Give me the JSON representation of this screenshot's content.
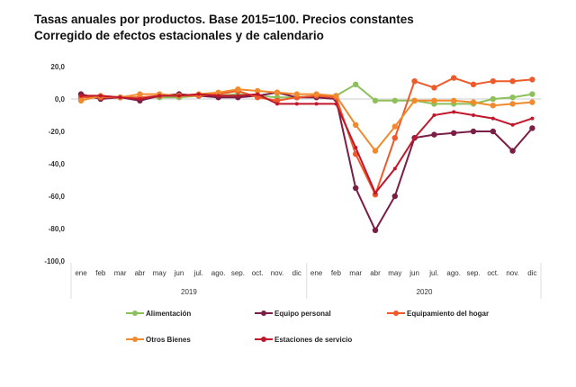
{
  "chart_data": {
    "type": "line",
    "title": "Tasas anuales por productos. Base 2015=100. Precios constantes",
    "subtitle": "Corregido de efectos estacionales y de calendario",
    "ylim": [
      -100,
      20
    ],
    "yticks": [
      "20,0",
      "0,0",
      "-20,0",
      "-40,0",
      "-60,0",
      "-80,0",
      "-100,0"
    ],
    "ytick_values": [
      20,
      0,
      -20,
      -40,
      -60,
      -80,
      -100
    ],
    "categories": [
      "ene",
      "feb",
      "mar",
      "abr",
      "may",
      "jun",
      "jul.",
      "ago.",
      "sep.",
      "oct.",
      "nov.",
      "dic",
      "ene",
      "feb",
      "mar",
      "abr",
      "may",
      "jun",
      "jul.",
      "ago.",
      "sep.",
      "oct.",
      "nov.",
      "dic"
    ],
    "years": [
      "2019",
      "2020"
    ],
    "legend_position": "bottom",
    "series": [
      {
        "name": "Alimentación",
        "color": "#8dc05a",
        "values": [
          2,
          1,
          1,
          1,
          1,
          1,
          2,
          2,
          3,
          2,
          1,
          1,
          2,
          2,
          9,
          -1,
          -1,
          -1,
          -3,
          -3,
          -3,
          0,
          1,
          3
        ]
      },
      {
        "name": "Equipo personal",
        "color": "#7b1e45",
        "values": [
          3,
          0,
          1,
          -1,
          2,
          3,
          2,
          1,
          1,
          2,
          4,
          1,
          1,
          0,
          -55,
          -81,
          -60,
          -24,
          -22,
          -21,
          -20,
          -20,
          -32,
          -18
        ]
      },
      {
        "name": "Equipamiento del hogar",
        "color": "#ee5a2a",
        "values": [
          1,
          1,
          1,
          1,
          2,
          2,
          2,
          3,
          5,
          1,
          -1,
          1,
          2,
          1,
          -34,
          -59,
          -24,
          11,
          7,
          13,
          9,
          11,
          11,
          12
        ]
      },
      {
        "name": "Otros Bienes",
        "color": "#f08a2c",
        "values": [
          -1,
          2,
          1,
          3,
          3,
          2,
          3,
          4,
          6,
          5,
          4,
          3,
          3,
          2,
          -16,
          -32,
          -17,
          -1,
          -1,
          -1,
          -2,
          -4,
          -3,
          -2
        ]
      },
      {
        "name": "Estaciones de servicio",
        "color": "#c0172b",
        "values": [
          2,
          2,
          1,
          0,
          2,
          2,
          3,
          2,
          2,
          3,
          -3,
          -3,
          -3,
          -3,
          -30,
          -58,
          -43,
          -24,
          -10,
          -8,
          -10,
          -12,
          -16,
          -12
        ]
      }
    ]
  }
}
